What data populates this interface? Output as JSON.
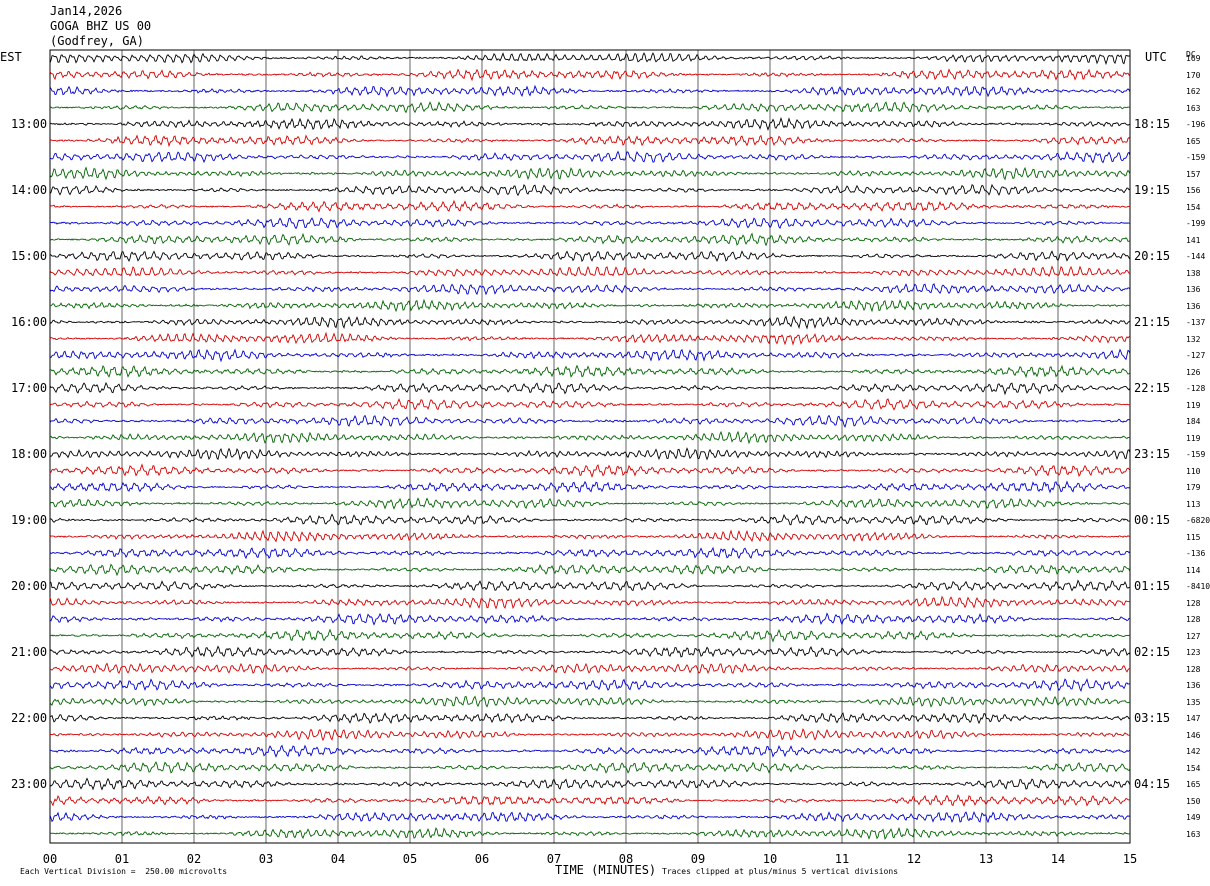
{
  "header": {
    "date": "Jan14,2026",
    "station": "GOGA BHZ US 00",
    "location": "(Godfrey, GA)"
  },
  "left_tz": "EST",
  "right_tz": "UTC",
  "dc_label": "DC",
  "footer": {
    "scale": "Each Vertical Division =  250.00 microvolts",
    "clip": "Traces clipped at plus/minus 5 vertical divisions"
  },
  "chart_data": {
    "type": "line",
    "title": "",
    "xlabel": "TIME (MINUTES)",
    "x_ticks": [
      "00",
      "01",
      "02",
      "03",
      "04",
      "05",
      "06",
      "07",
      "08",
      "09",
      "10",
      "11",
      "12",
      "13",
      "14",
      "15"
    ],
    "xlim": [
      0,
      15
    ],
    "trace_colors": [
      "#000000",
      "#d40000",
      "#0000cc",
      "#006400"
    ],
    "left_hour_labels": [
      "13:00",
      "14:00",
      "15:00",
      "16:00",
      "17:00",
      "18:00",
      "19:00",
      "20:00",
      "21:00",
      "22:00",
      "23:00"
    ],
    "right_hour_labels": [
      "18:15",
      "19:15",
      "20:15",
      "21:15",
      "22:15",
      "23:15",
      "00:15",
      "01:15",
      "02:15",
      "03:15",
      "04:15"
    ],
    "dc_offsets": [
      "169",
      "170",
      "162",
      "163",
      "-196",
      "165",
      "-159",
      "157",
      "156",
      "154",
      "-199",
      "141",
      "-144",
      "138",
      "136",
      "136",
      "-137",
      "132",
      "-127",
      "126",
      "-128",
      "119",
      "184",
      "119",
      "-159",
      "110",
      "179",
      "113",
      "-6820",
      "115",
      "-136",
      "114",
      "-8410",
      "128",
      "128",
      "127",
      "123",
      "128",
      "136",
      "135",
      "147",
      "146",
      "142",
      "154",
      "165",
      "150",
      "149",
      "163"
    ]
  }
}
